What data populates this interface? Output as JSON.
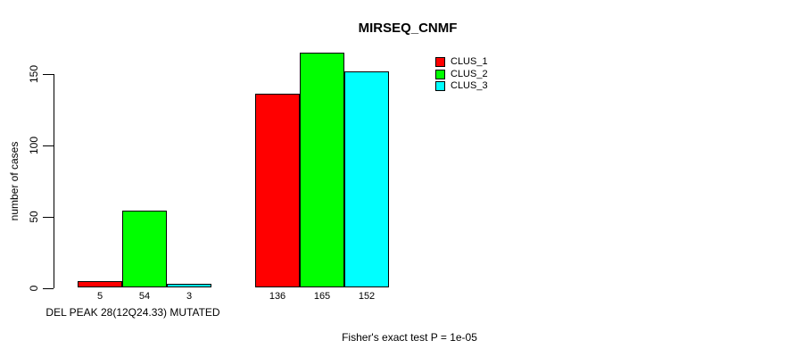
{
  "chart_data": {
    "type": "bar",
    "title": "MIRSEQ_CNMF",
    "ylabel": "number of cases",
    "xlabel": "DEL PEAK 28(12Q24.33) MUTATED",
    "annotation": "Fisher's exact test P = 1e-05",
    "ylim": [
      0,
      165
    ],
    "yticks": [
      0,
      50,
      100,
      150
    ],
    "grid": false,
    "legend_position": "top-right",
    "show_value_labels": true,
    "group_labels": [
      "DEL PEAK 28(12Q24.33) MUTATED",
      ""
    ],
    "series": [
      {
        "name": "CLUS_1",
        "color": "#ff0000",
        "values": [
          5,
          136
        ]
      },
      {
        "name": "CLUS_2",
        "color": "#00ff00",
        "values": [
          54,
          165
        ]
      },
      {
        "name": "CLUS_3",
        "color": "#00ffff",
        "values": [
          3,
          152
        ]
      }
    ]
  }
}
